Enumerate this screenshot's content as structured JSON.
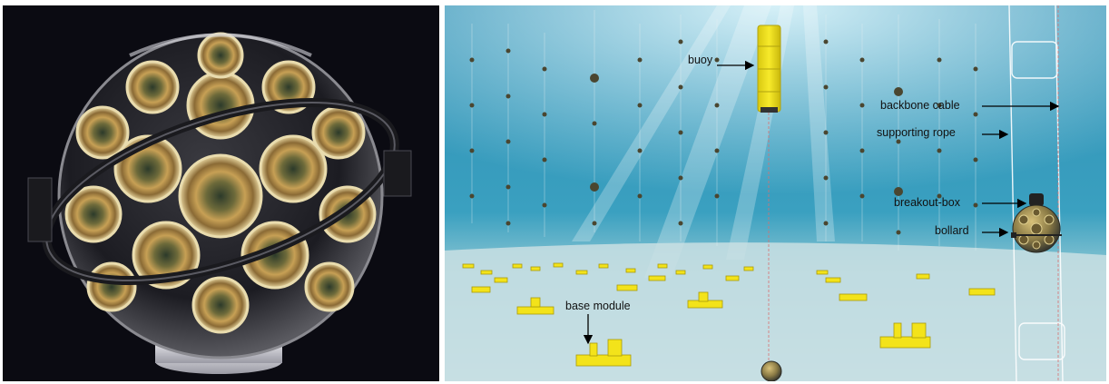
{
  "figure": {
    "left_panel": {
      "subject": "optical-module-sphere-photo"
    },
    "right_panel": {
      "subject": "underwater-detector-array-illustration",
      "labels": {
        "buoy": "buoy",
        "backbone_cable": "backbone cable",
        "supporting_rope": "supporting rope",
        "breakout_box": "breakout-box",
        "bollard": "bollard",
        "base_module": "base module"
      }
    },
    "colors": {
      "background_dark": "#0b0b12",
      "water_top": "#2f8fb4",
      "water_bottom": "#b9dbe4",
      "buoy_yellow": "#f3e31a",
      "glass_gold": "#c79a45"
    }
  }
}
